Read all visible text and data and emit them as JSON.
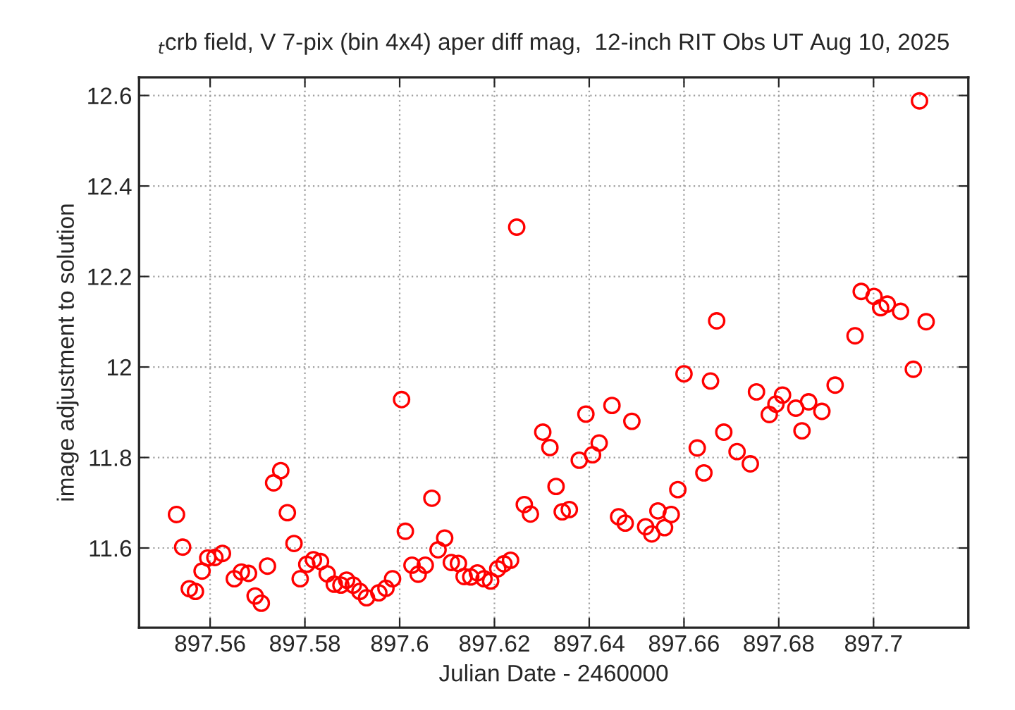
{
  "chart_data": {
    "type": "scatter",
    "title": "$_{t}$crb field, V 7-pix (bin 4x4) aper diff mag,  12-inch RIT Obs UT Aug 10, 2025",
    "xlabel": "Julian Date - 2460000",
    "ylabel": "image adjustment to solution",
    "marker": "circle",
    "grid": true,
    "xlim": [
      897.545,
      897.72
    ],
    "ylim": [
      11.424,
      12.64
    ],
    "xticks": [
      897.56,
      897.58,
      897.6,
      897.62,
      897.64,
      897.66,
      897.68,
      897.7
    ],
    "yticks": [
      11.6,
      11.8,
      12,
      12.2,
      12.4,
      12.6
    ],
    "series": [
      {
        "color": "#ff0000",
        "x": [
          897.5529,
          897.5542,
          897.5556,
          897.5569,
          897.5583,
          897.5595,
          897.561,
          897.5626,
          897.5651,
          897.5666,
          897.5681,
          897.5695,
          897.5708,
          897.5721,
          897.5734,
          897.5749,
          897.5763,
          897.5777,
          897.579,
          897.5804,
          897.5818,
          897.5833,
          897.5847,
          897.5862,
          897.5876,
          897.5888,
          897.5902,
          897.5916,
          897.593,
          897.5956,
          897.5971,
          897.5985,
          897.6004,
          897.6012,
          897.6026,
          897.6039,
          897.6054,
          897.6068,
          897.6081,
          897.6095,
          897.6109,
          897.6124,
          897.6136,
          897.615,
          897.6164,
          897.6178,
          897.6192,
          897.6207,
          897.622,
          897.6234,
          897.6247,
          897.6263,
          897.6276,
          897.6302,
          897.6317,
          897.633,
          897.6343,
          897.6358,
          897.6379,
          897.6393,
          897.6407,
          897.6421,
          897.6448,
          897.6462,
          897.6476,
          897.649,
          897.6519,
          897.6532,
          897.6545,
          897.6559,
          897.6573,
          897.6587,
          897.66,
          897.6628,
          897.6642,
          897.6656,
          897.6669,
          897.6684,
          897.6712,
          897.674,
          897.6753,
          897.678,
          897.6794,
          897.6808,
          897.6836,
          897.6849,
          897.6863,
          897.6891,
          897.6919,
          897.6961,
          897.6974,
          897.7001,
          897.7015,
          897.7029,
          897.7057,
          897.7084,
          897.7097,
          897.7111
        ],
        "values": [
          11.674,
          11.602,
          11.51,
          11.504,
          11.549,
          11.578,
          11.579,
          11.588,
          11.532,
          11.547,
          11.544,
          11.494,
          11.478,
          11.56,
          11.744,
          11.771,
          11.678,
          11.61,
          11.532,
          11.564,
          11.574,
          11.57,
          11.543,
          11.52,
          11.518,
          11.529,
          11.518,
          11.504,
          11.49,
          11.501,
          11.511,
          11.532,
          11.928,
          11.637,
          11.562,
          11.542,
          11.562,
          11.71,
          11.596,
          11.622,
          11.568,
          11.566,
          11.537,
          11.536,
          11.545,
          11.532,
          11.527,
          11.554,
          11.565,
          11.573,
          12.309,
          11.696,
          11.675,
          11.856,
          11.822,
          11.736,
          11.68,
          11.685,
          11.794,
          11.896,
          11.806,
          11.832,
          11.915,
          11.669,
          11.655,
          11.88,
          11.647,
          11.631,
          11.682,
          11.645,
          11.674,
          11.729,
          11.985,
          11.821,
          11.766,
          11.969,
          12.102,
          11.856,
          11.813,
          11.786,
          11.945,
          11.895,
          11.918,
          11.938,
          11.909,
          11.859,
          11.923,
          11.902,
          11.96,
          12.069,
          12.167,
          12.156,
          12.131,
          12.139,
          12.123,
          11.995,
          12.588,
          12.1
        ]
      }
    ]
  }
}
